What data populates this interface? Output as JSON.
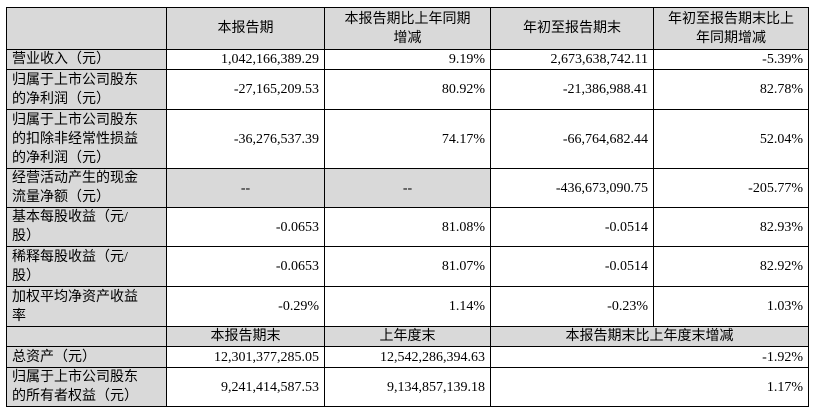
{
  "header": [
    "",
    "本报告期",
    "本报告期比上年同期\n增减",
    "年初至报告期末",
    "年初至报告期末比上\n年同期增减"
  ],
  "rows": [
    {
      "label": "营业收入（元）",
      "values": [
        "1,042,166,389.29",
        "9.19%",
        "2,673,638,742.11",
        "-5.39%"
      ]
    },
    {
      "label": "归属于上市公司股东\n的净利润（元）",
      "values": [
        "-27,165,209.53",
        "80.92%",
        "-21,386,988.41",
        "82.78%"
      ]
    },
    {
      "label": "归属于上市公司股东\n的扣除非经常性损益\n的净利润（元）",
      "values": [
        "-36,276,537.39",
        "74.17%",
        "-66,764,682.44",
        "52.04%"
      ]
    },
    {
      "label": "经营活动产生的现金\n流量净额（元）",
      "values": [
        "--",
        "--",
        "-436,673,090.75",
        "-205.77%"
      ]
    },
    {
      "label": "基本每股收益（元/\n股）",
      "values": [
        "-0.0653",
        "81.08%",
        "-0.0514",
        "82.93%"
      ]
    },
    {
      "label": "稀释每股收益（元/\n股）",
      "values": [
        "-0.0653",
        "81.07%",
        "-0.0514",
        "82.92%"
      ]
    },
    {
      "label": "加权平均净资产收益\n率",
      "values": [
        "-0.29%",
        "1.14%",
        "-0.23%",
        "1.03%"
      ]
    }
  ],
  "subheader": [
    "",
    "本报告期末",
    "上年度末",
    "本报告期末比上年度末增减"
  ],
  "balance_rows": [
    {
      "label": "总资产（元）",
      "values": [
        "12,301,377,285.05",
        "12,542,286,394.63",
        "-1.92%"
      ]
    },
    {
      "label": "归属于上市公司股东\n的所有者权益（元）",
      "values": [
        "9,241,414,587.53",
        "9,134,857,139.18",
        "1.17%"
      ]
    }
  ],
  "colors": {
    "shaded_cell": "#d9d9d9",
    "border": "#000000"
  }
}
